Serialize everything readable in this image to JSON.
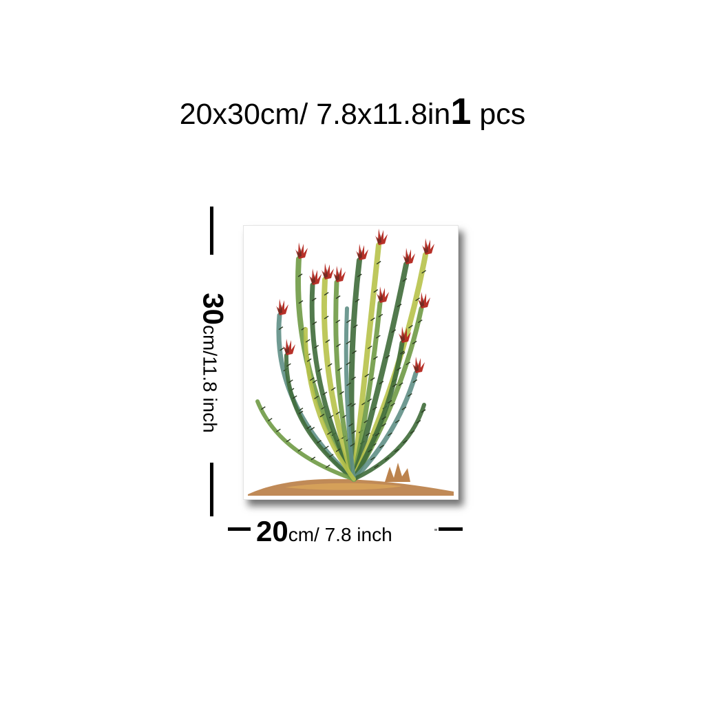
{
  "headline": {
    "size_text": "20x30cm/ 7.8x11.8in",
    "qty_number": "1",
    "qty_unit": "pcs"
  },
  "dimensions": {
    "height_big": "30",
    "height_rest": "cm/11.8 inch",
    "width_big": "20",
    "width_rest": "cm/ 7.8 inch"
  },
  "artwork": {
    "subject": "watercolor ocotillo cactus with red flower tips",
    "colors": {
      "stem_dark": "#3f6b3a",
      "stem_mid": "#6f9a45",
      "stem_light": "#b7c24a",
      "stem_teal": "#5f8f86",
      "flower": "#b3261e",
      "flower_dark": "#5a2a20",
      "ground": "#b5763a",
      "ground_light": "#d9a55a"
    }
  }
}
